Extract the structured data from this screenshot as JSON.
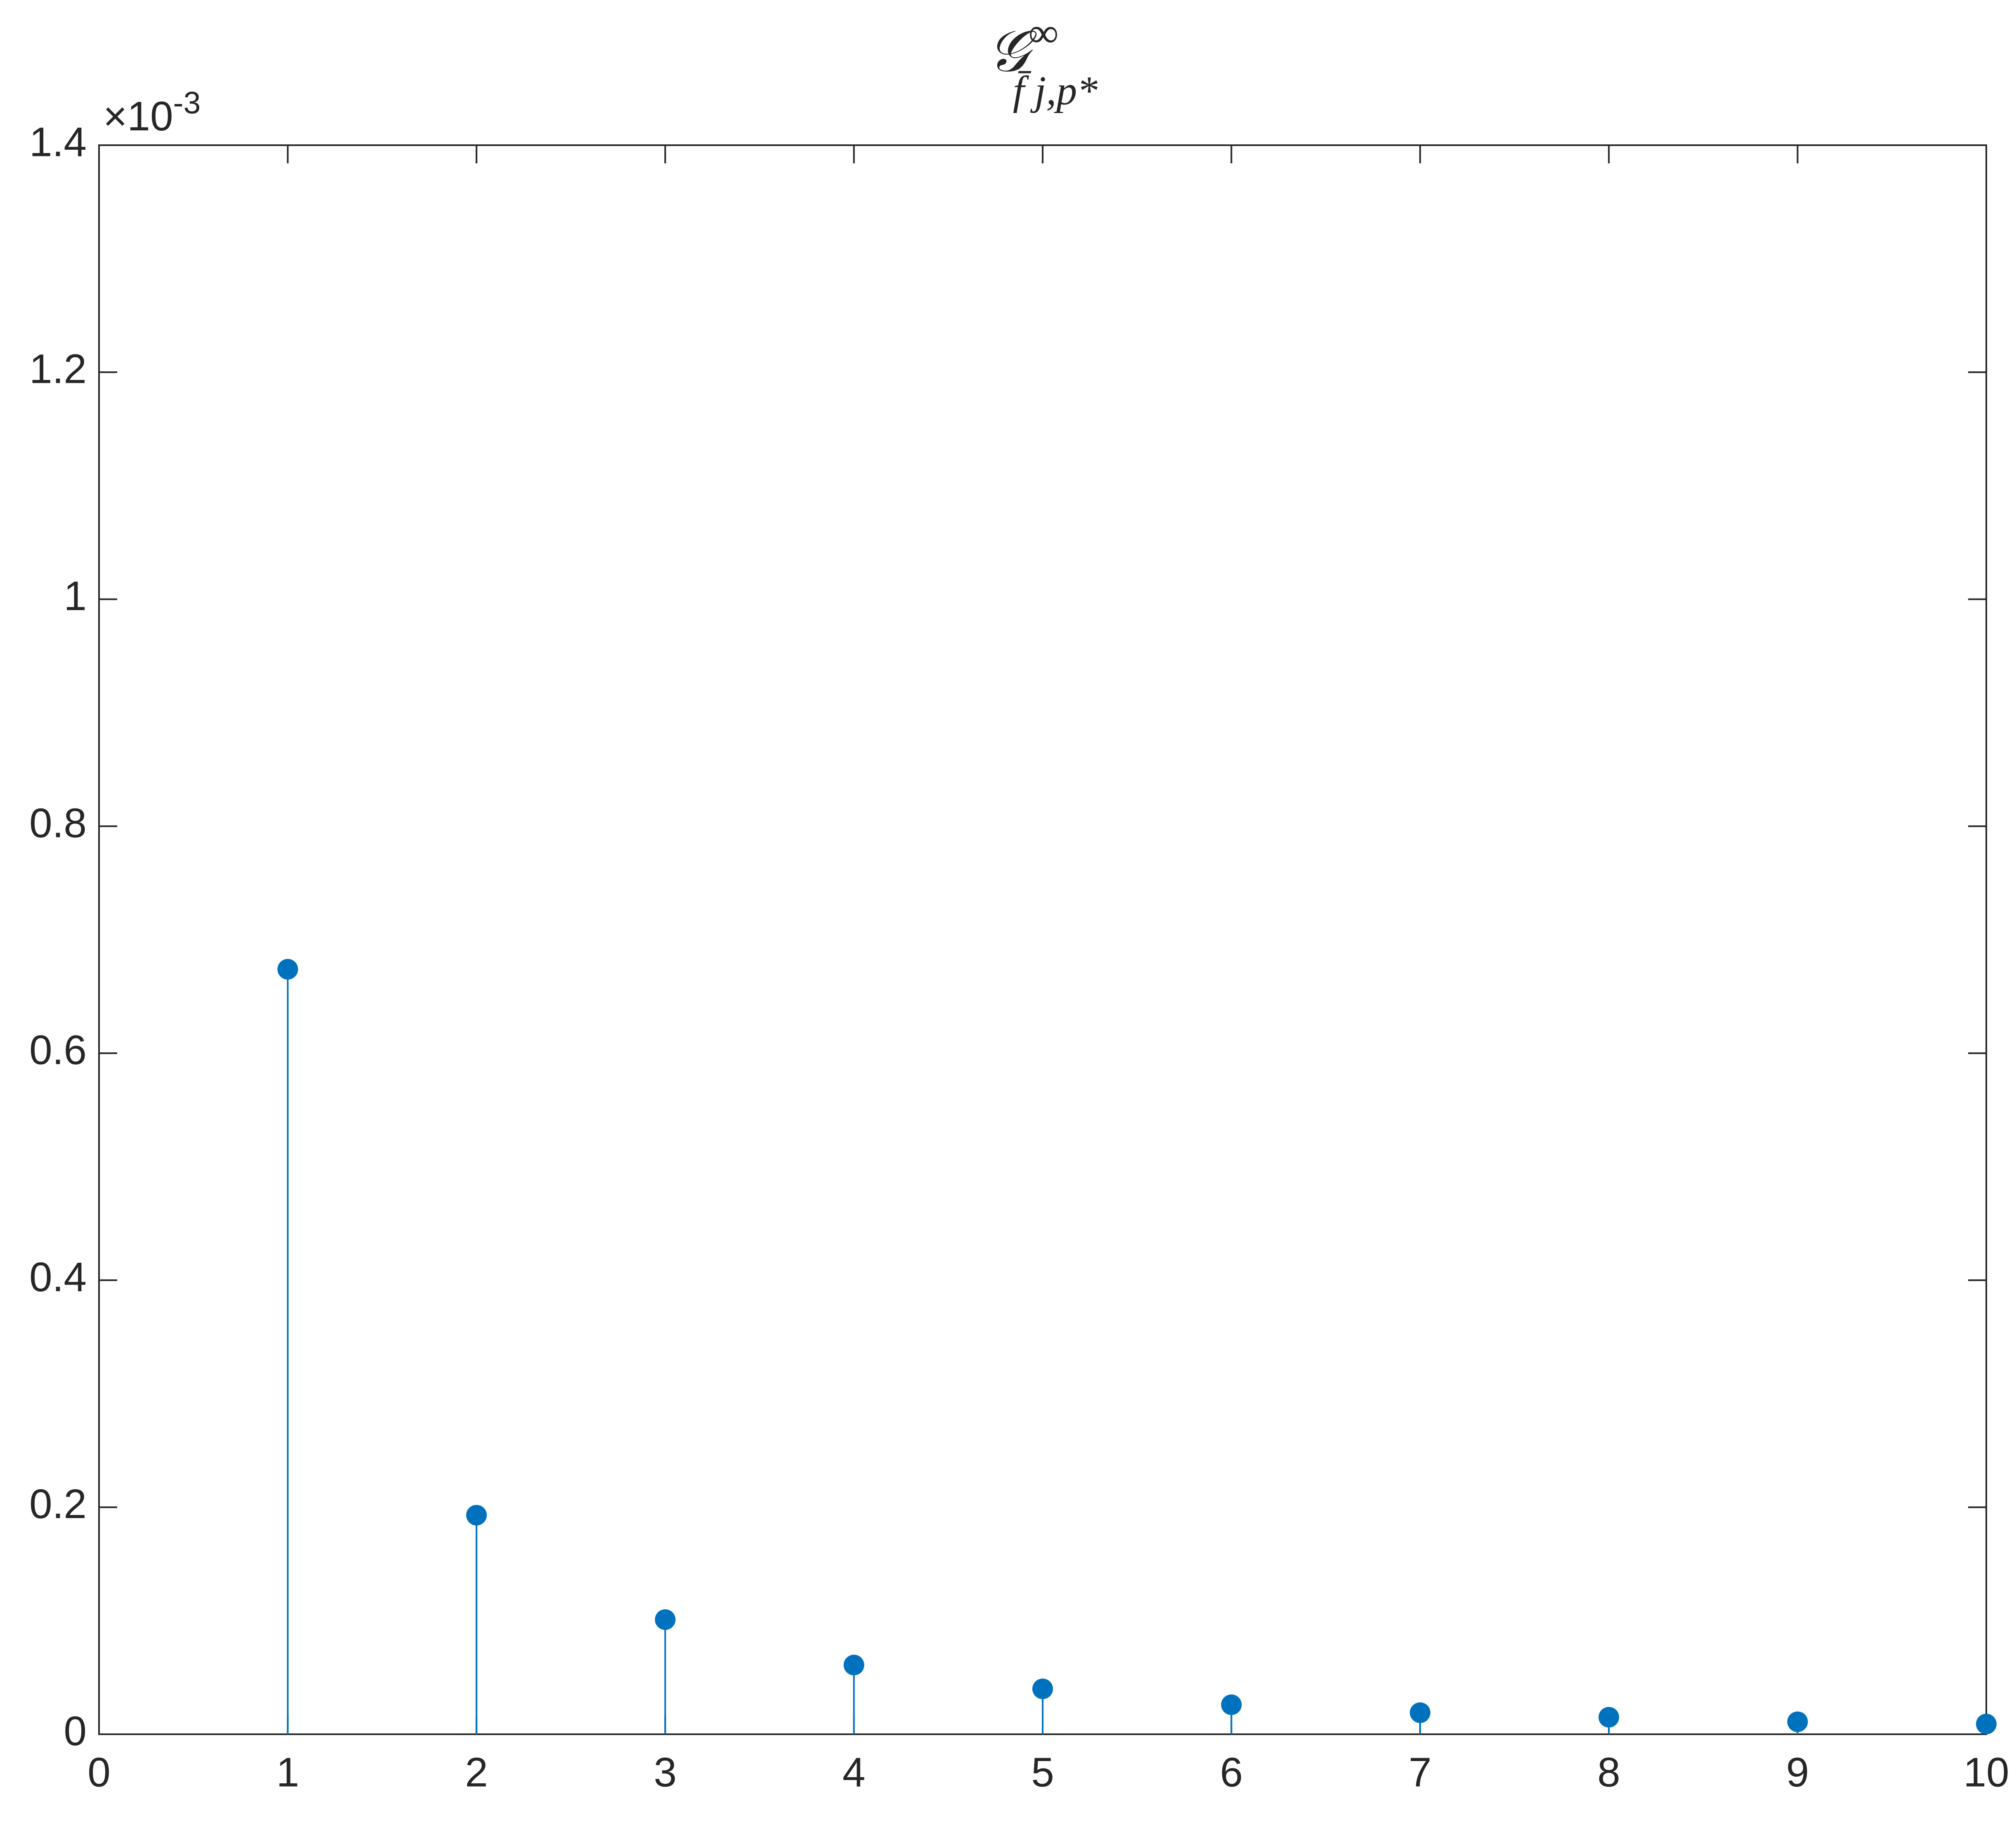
{
  "chart_data": {
    "type": "stem",
    "title": {
      "main": "𝒢",
      "sup": "∞",
      "sub": "f̄ j,p*"
    },
    "y_multiplier": {
      "base": "×10",
      "exponent": "-3"
    },
    "x": [
      1,
      2,
      3,
      4,
      5,
      6,
      7,
      8,
      9,
      10
    ],
    "values": [
      0.674,
      0.193,
      0.101,
      0.061,
      0.04,
      0.026,
      0.019,
      0.015,
      0.011,
      0.009
    ],
    "color": "#0072bd",
    "xlim": [
      0,
      10
    ],
    "xticks": [
      0,
      1,
      2,
      3,
      4,
      5,
      6,
      7,
      8,
      9,
      10
    ],
    "ylim": [
      0,
      1.4
    ],
    "yticks": [
      0,
      0.2,
      0.4,
      0.6,
      0.8,
      1,
      1.2,
      1.4
    ],
    "box": true,
    "grid": false
  }
}
